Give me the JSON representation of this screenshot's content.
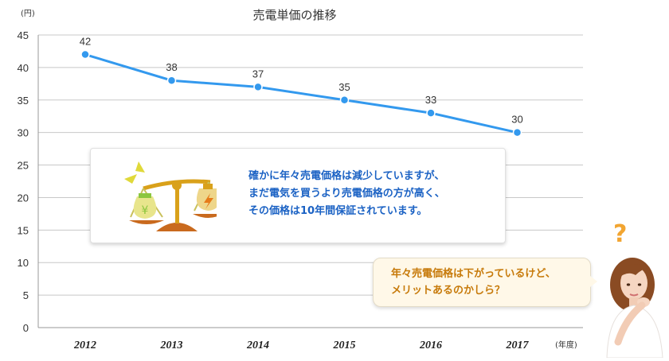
{
  "chart_data": {
    "type": "line",
    "title": "売電単価の推移",
    "y_unit": "(円)",
    "x_unit": "(年度)",
    "categories": [
      "2012",
      "2013",
      "2014",
      "2015",
      "2016",
      "2017"
    ],
    "series": [
      {
        "values": [
          42,
          38,
          37,
          35,
          33,
          30
        ]
      }
    ],
    "ylim": [
      0,
      45
    ],
    "yticks": [
      "45",
      "40",
      "35",
      "30",
      "25",
      "20",
      "15",
      "10",
      "5",
      "0"
    ],
    "grid": true,
    "line_color": "#3399ee"
  },
  "info_box": {
    "lines": [
      "確かに年々売電価格は減少していますが、",
      "まだ電気を買うより売電価格の方が高く、",
      "その価格は10年間保証されています。"
    ],
    "icon": "balance-scale-icon"
  },
  "speech_bubble": {
    "lines": [
      "年々売電価格は下がっているけど、",
      "メリットあるのかしら？"
    ]
  },
  "character": {
    "icon": "thinking-woman-icon",
    "question_mark": "?"
  }
}
